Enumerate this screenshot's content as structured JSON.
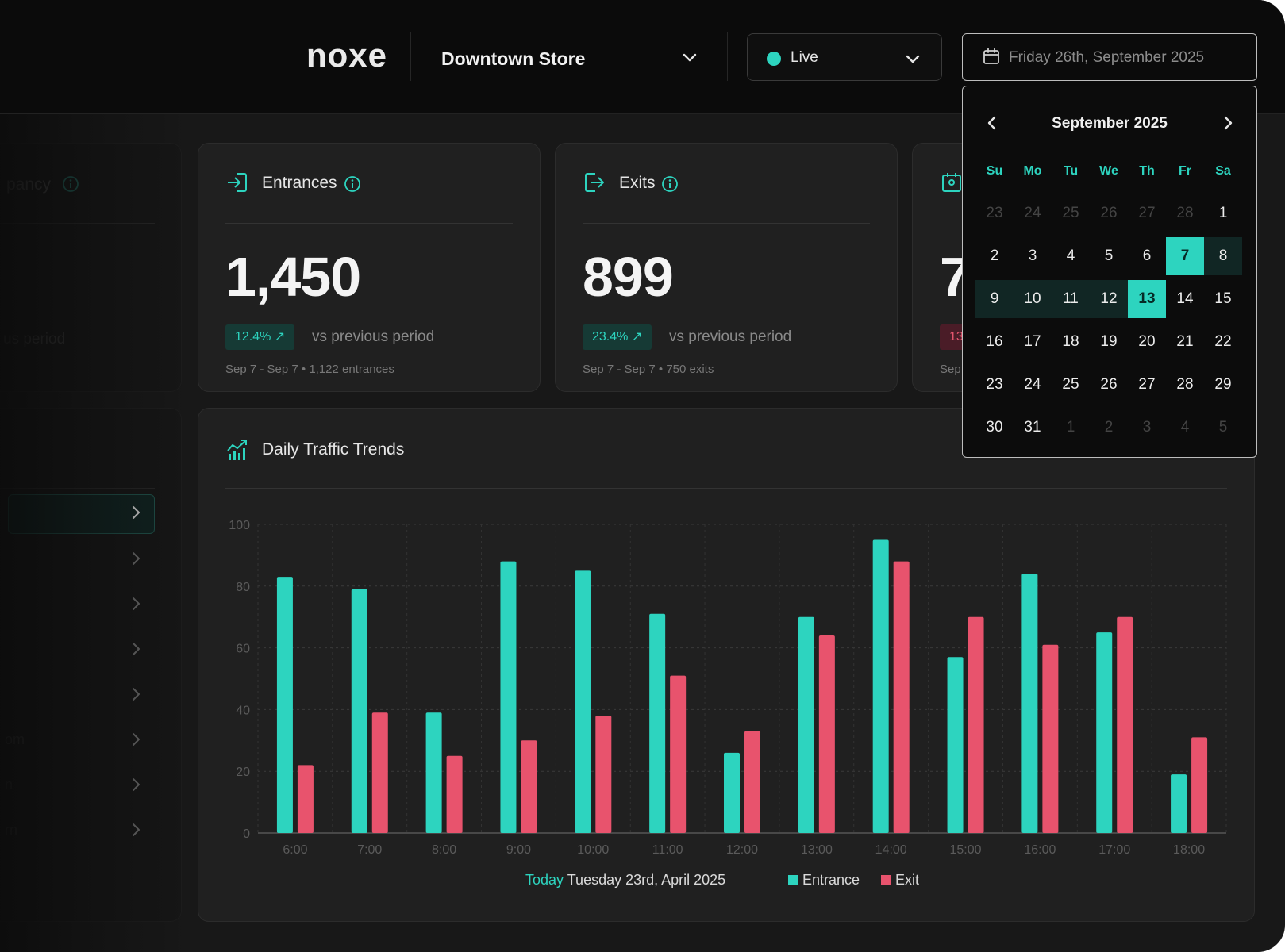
{
  "header": {
    "logo": "noxe",
    "store": "Downtown Store",
    "live_label": "Live",
    "date_value": "Friday 26th, September 2025"
  },
  "sidebar_ghost": {
    "occupancy_fragment": "pancy",
    "period_fragment": "us period",
    "row_fragments": [
      "om",
      "n",
      "rn"
    ]
  },
  "cards": [
    {
      "title": "Entrances",
      "value": "1,450",
      "change": "12.4%",
      "vs": "vs previous period",
      "footer": "Sep 7 - Sep 7 • 1,122 entrances"
    },
    {
      "title": "Exits",
      "value": "899",
      "change": "23.4%",
      "vs": "vs previous period",
      "footer": "Sep 7 - Sep 7 • 750 exits"
    },
    {
      "value_fragment": "7",
      "change_fragment": "13",
      "footer_fragment": "Sep"
    }
  ],
  "chart": {
    "title": "Daily Traffic Trends",
    "today_label": "Today",
    "date_label": "Tuesday 23rd, April 2025"
  },
  "chart_data": {
    "type": "bar",
    "categories": [
      "6:00",
      "7:00",
      "8:00",
      "9:00",
      "10:00",
      "11:00",
      "12:00",
      "13:00",
      "14:00",
      "15:00",
      "16:00",
      "17:00",
      "18:00"
    ],
    "series": [
      {
        "name": "Entrance",
        "color": "#2dd4bf",
        "values": [
          83,
          79,
          39,
          88,
          85,
          71,
          26,
          70,
          95,
          57,
          84,
          65,
          19
        ]
      },
      {
        "name": "Exit",
        "color": "#e8536d",
        "values": [
          22,
          39,
          25,
          30,
          38,
          51,
          33,
          64,
          88,
          70,
          61,
          70,
          31
        ]
      }
    ],
    "ylim": [
      0,
      100
    ],
    "yticks": [
      0,
      20,
      40,
      60,
      80,
      100
    ],
    "grid": true,
    "legend": "bottom-center"
  },
  "calendar": {
    "month_label": "September 2025",
    "dow": [
      "Su",
      "Mo",
      "Tu",
      "We",
      "Th",
      "Fr",
      "Sa"
    ],
    "weeks": [
      [
        "23",
        "24",
        "25",
        "26",
        "27",
        "28",
        "1"
      ],
      [
        "2",
        "3",
        "4",
        "5",
        "6",
        "7",
        "8"
      ],
      [
        "9",
        "10",
        "11",
        "12",
        "13",
        "14",
        "15"
      ],
      [
        "16",
        "17",
        "18",
        "19",
        "20",
        "21",
        "22"
      ],
      [
        "23",
        "24",
        "25",
        "26",
        "27",
        "28",
        "29"
      ],
      [
        "30",
        "31",
        "1",
        "2",
        "3",
        "4",
        "5"
      ]
    ],
    "selected_start": "7",
    "selected_end": "13"
  },
  "colors": {
    "accent": "#2dd4bf",
    "exit": "#e8536d",
    "background": "#0b0b0b",
    "card": "#202020"
  }
}
